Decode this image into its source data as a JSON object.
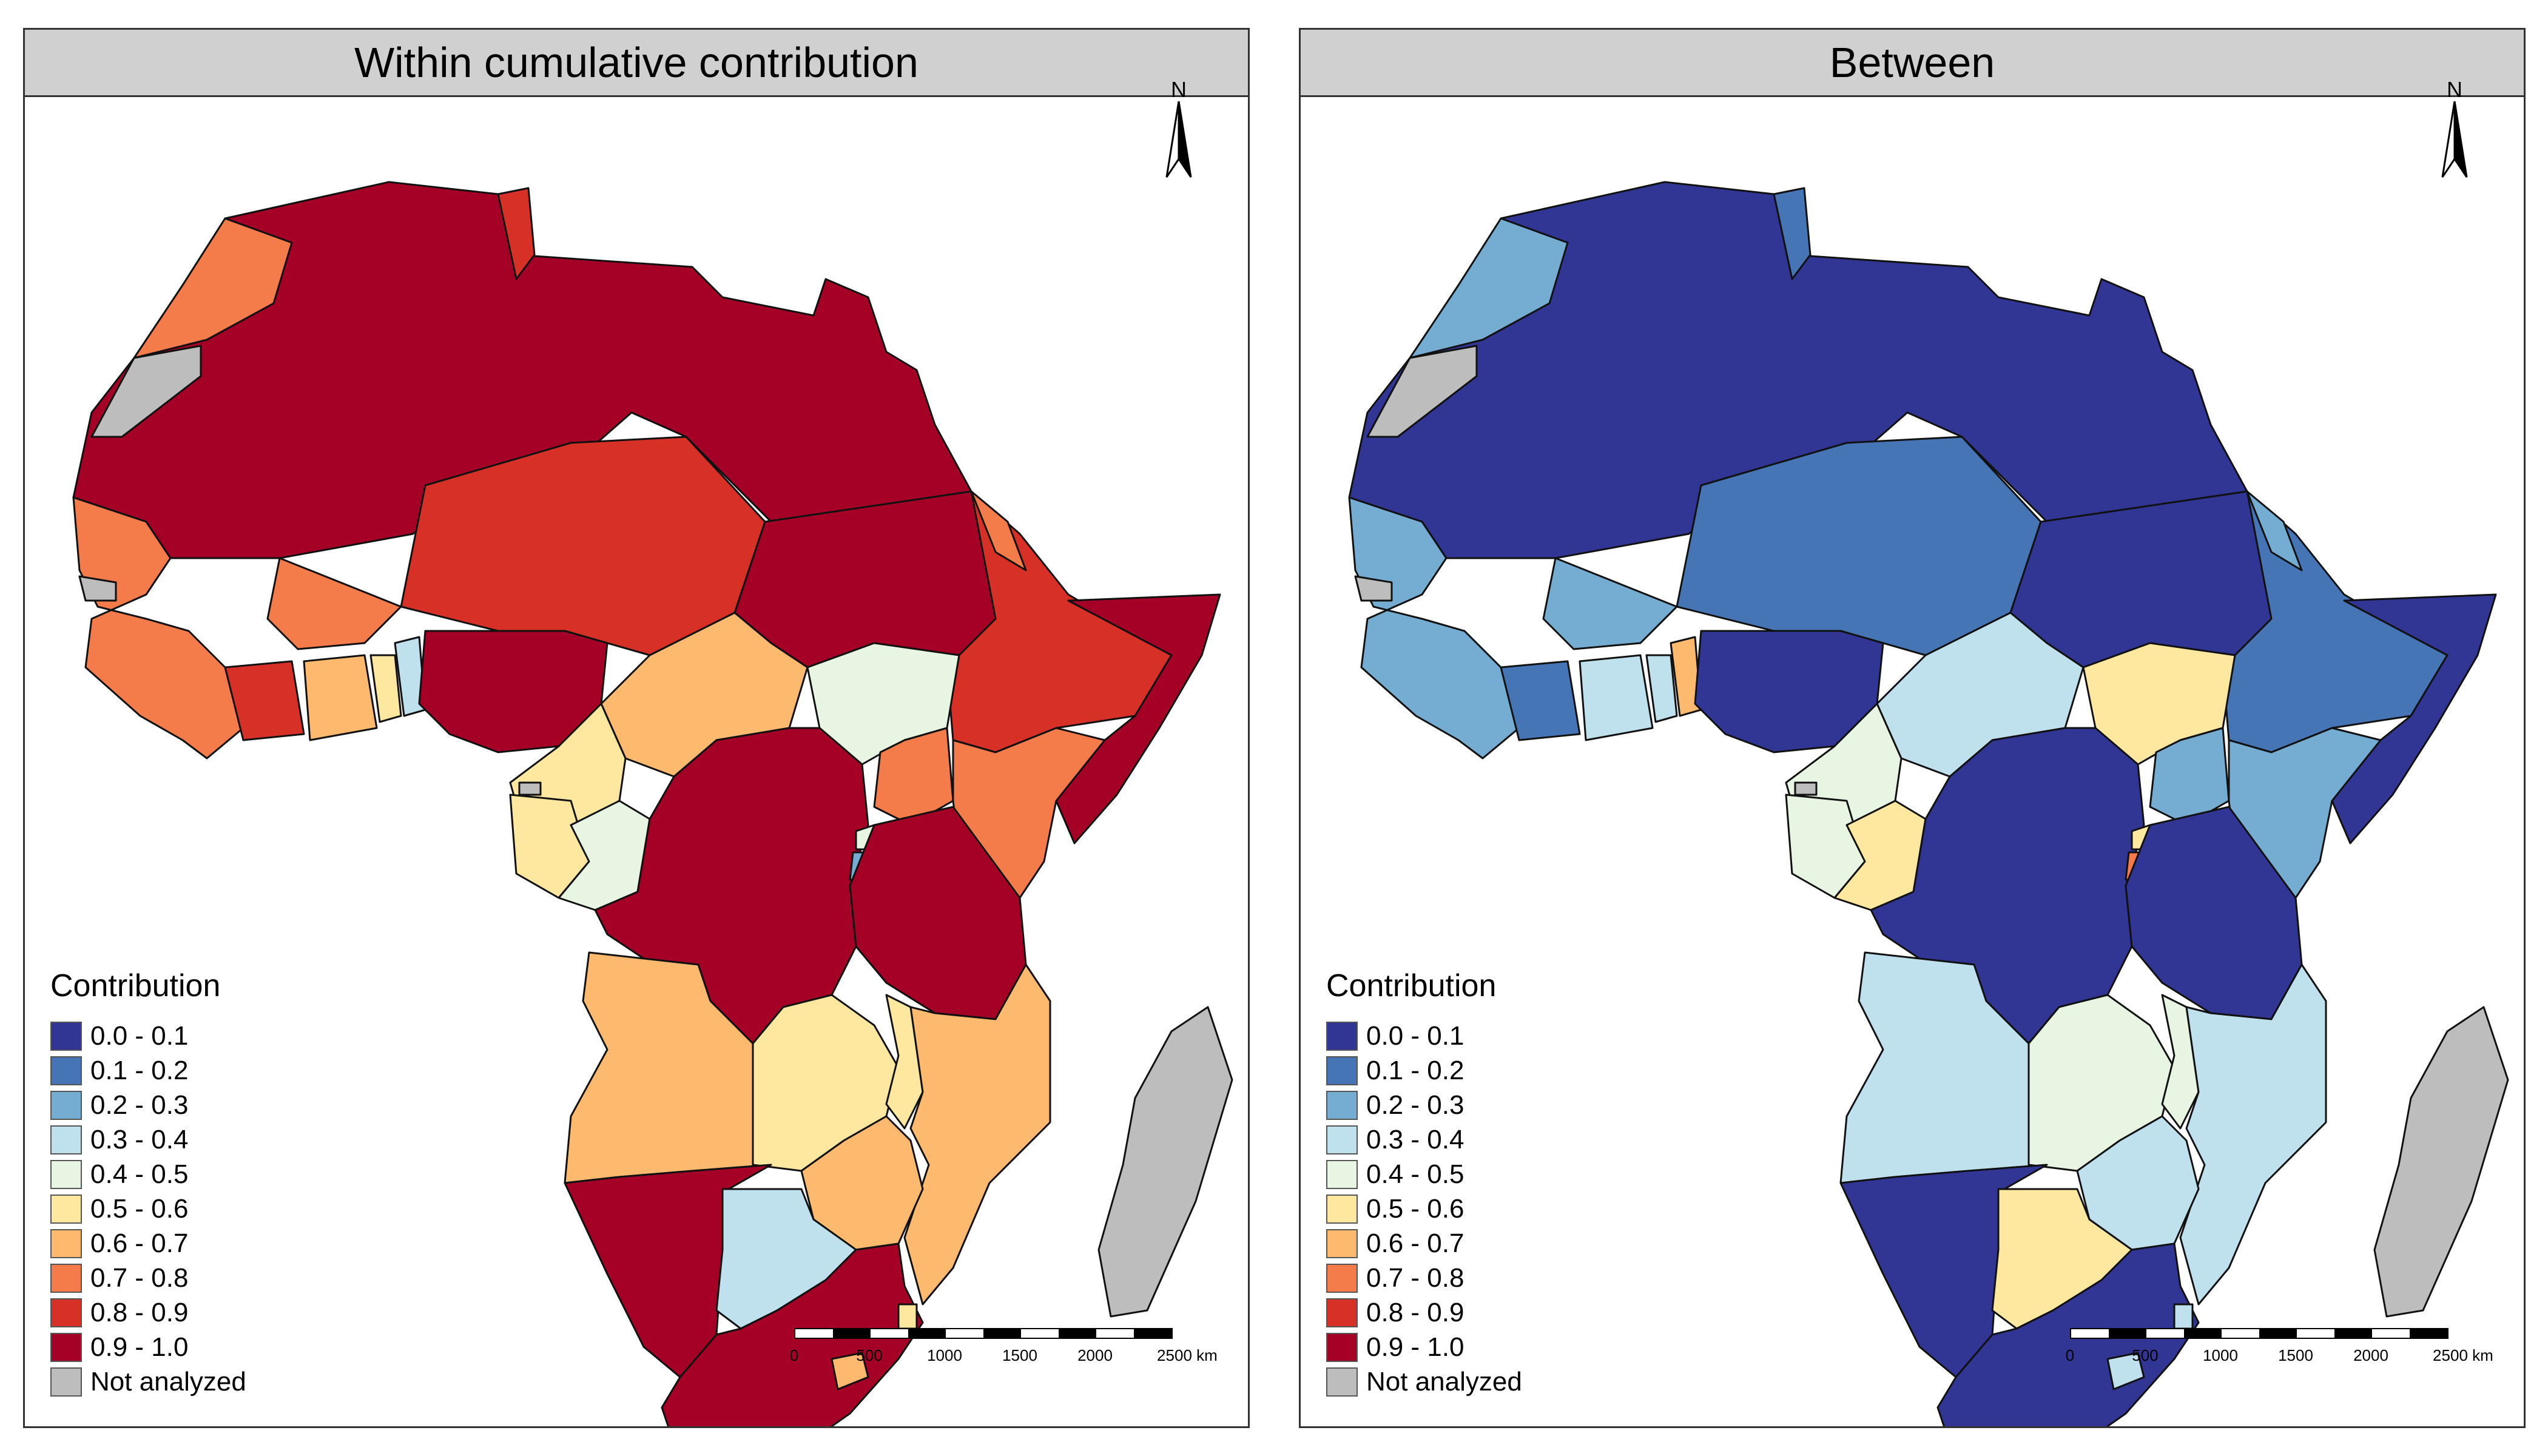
{
  "panels": [
    {
      "title": "Within cumulative contribution"
    },
    {
      "title": "Between"
    }
  ],
  "legend": {
    "title": "Contribution",
    "items": [
      {
        "label": "0.0 - 0.1",
        "color": "#313695"
      },
      {
        "label": "0.1 - 0.2",
        "color": "#4575b4"
      },
      {
        "label": "0.2 - 0.3",
        "color": "#74add1"
      },
      {
        "label": "0.3 - 0.4",
        "color": "#bfe1ee"
      },
      {
        "label": "0.4 - 0.5",
        "color": "#e9f5e3"
      },
      {
        "label": "0.5 - 0.6",
        "color": "#fee8a0"
      },
      {
        "label": "0.6 - 0.7",
        "color": "#fdb96e"
      },
      {
        "label": "0.7 - 0.8",
        "color": "#f47b4a"
      },
      {
        "label": "0.8 - 0.9",
        "color": "#d73027"
      },
      {
        "label": "0.9 - 1.0",
        "color": "#a50026"
      },
      {
        "label": "Not analyzed",
        "color": "#bdbdbd"
      }
    ]
  },
  "north_arrow": {
    "label": "N"
  },
  "scale_bar": {
    "ticks": [
      "0",
      "500",
      "1000",
      "1500",
      "2000",
      "2500 km"
    ]
  }
}
